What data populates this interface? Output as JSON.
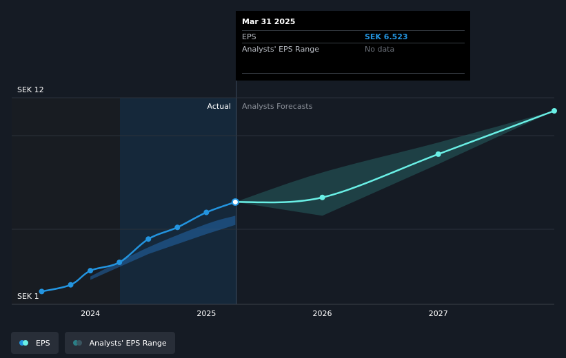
{
  "tooltip": {
    "date": "Mar 31 2025",
    "eps_label": "EPS",
    "eps_value": "SEK 6.523",
    "range_label": "Analysts' EPS Range",
    "range_value": "No data"
  },
  "sections": {
    "actual": "Actual",
    "forecast": "Analysts Forecasts"
  },
  "legend": [
    {
      "label": "EPS",
      "colors": [
        "#2394df",
        "#6af0e6"
      ]
    },
    {
      "label": "Analysts' EPS Range",
      "colors": [
        "#2b7f86",
        "#3a5560"
      ]
    }
  ],
  "colors": {
    "background": "#151b24",
    "actual_line": "#2394df",
    "forecast_line": "#6af0e6",
    "range_fill": "#2b6e6f"
  },
  "chart_data": {
    "type": "line",
    "y_tick_labels": [
      "SEK 12",
      "SEK 1"
    ],
    "ylim": [
      1,
      12
    ],
    "x_ticks": [
      {
        "label": "2024",
        "value": 2024.0
      },
      {
        "label": "2025",
        "value": 2025.0
      },
      {
        "label": "2026",
        "value": 2026.0
      },
      {
        "label": "2027",
        "value": 2027.0
      }
    ],
    "xlim": [
      2023.5,
      2028.0
    ],
    "series": [
      {
        "name": "EPS",
        "kind": "actual",
        "points": [
          [
            2023.58,
            1.15
          ],
          [
            2023.83,
            1.55
          ],
          [
            2024.0,
            2.4
          ],
          [
            2024.25,
            2.9
          ],
          [
            2024.5,
            4.3
          ],
          [
            2024.75,
            5.0
          ],
          [
            2025.0,
            5.9
          ],
          [
            2025.25,
            6.523
          ]
        ]
      },
      {
        "name": "EPS",
        "kind": "forecast",
        "points": [
          [
            2025.25,
            6.523
          ],
          [
            2026.0,
            6.8
          ],
          [
            2027.0,
            9.4
          ],
          [
            2028.0,
            12.0
          ]
        ]
      }
    ],
    "actual_band": {
      "upper": [
        [
          2024.0,
          2.05
        ],
        [
          2024.5,
          3.8
        ],
        [
          2025.0,
          5.2
        ],
        [
          2025.25,
          5.7
        ]
      ],
      "lower": [
        [
          2024.0,
          1.85
        ],
        [
          2024.5,
          3.4
        ],
        [
          2025.0,
          4.6
        ],
        [
          2025.25,
          5.15
        ]
      ]
    },
    "forecast_range": {
      "upper": [
        [
          2025.25,
          6.523
        ],
        [
          2026.0,
          8.3
        ],
        [
          2027.0,
          10.1
        ],
        [
          2028.0,
          12.0
        ]
      ],
      "lower": [
        [
          2025.25,
          6.523
        ],
        [
          2026.0,
          5.7
        ],
        [
          2027.0,
          8.8
        ],
        [
          2028.0,
          12.0
        ]
      ]
    },
    "last_actual_x": 2025.25,
    "grid": true
  }
}
